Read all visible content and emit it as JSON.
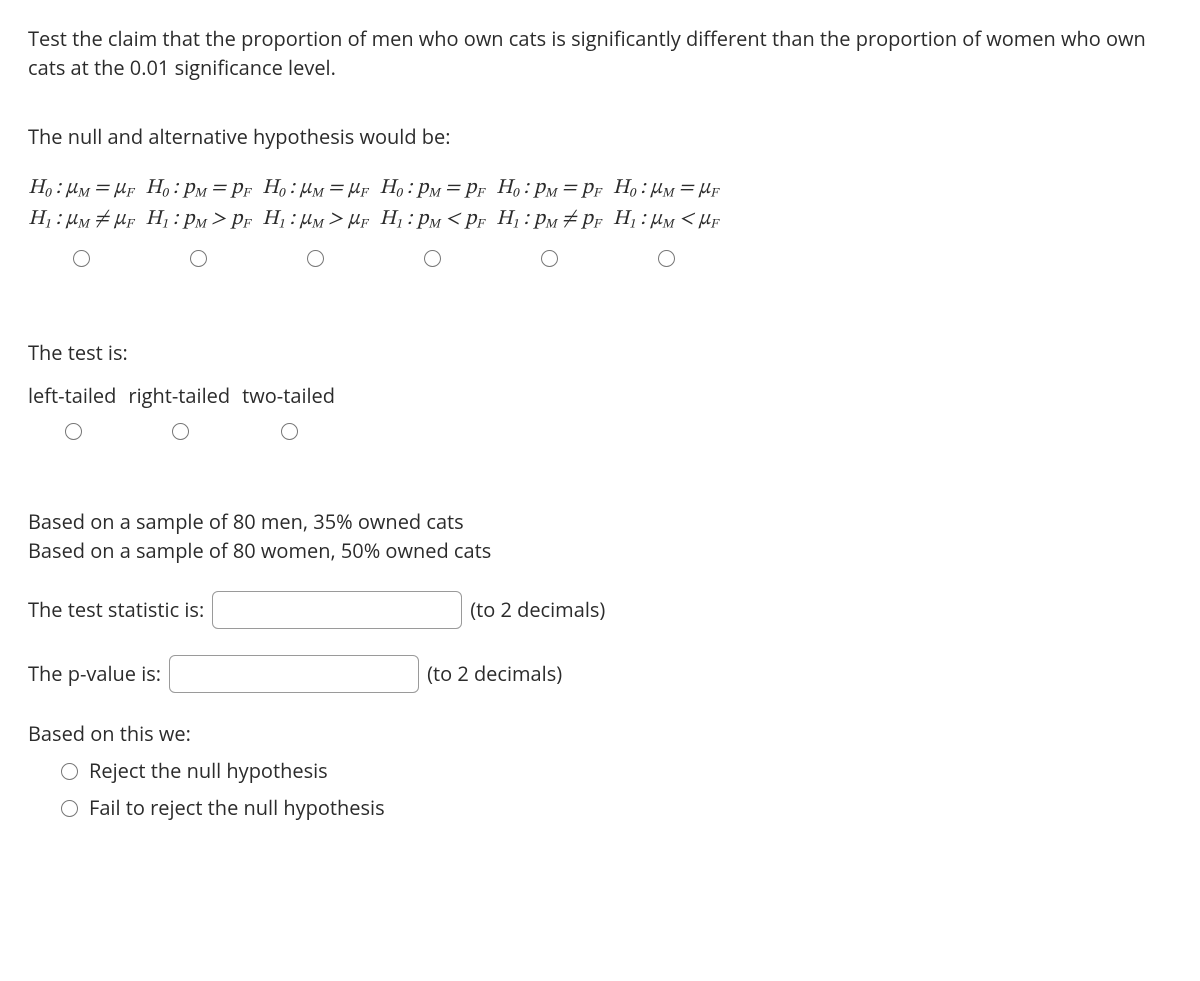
{
  "intro": "Test the claim that the proportion of men who own cats is significantly different than the proportion of women who own cats at the 0.01 significance level.",
  "hypothesis_prompt": "The null and alternative hypothesis would be:",
  "hyp_options": [
    {
      "h0": "H₀ : μ_M = μ_F",
      "h1": "H₁ : μ_M ≠ μ_F"
    },
    {
      "h0": "H₀ : p_M = p_F",
      "h1": "H₁ : p_M > p_F"
    },
    {
      "h0": "H₀ : μ_M = μ_F",
      "h1": "H₁ : μ_M > μ_F"
    },
    {
      "h0": "H₀ : p_M = p_F",
      "h1": "H₁ : p_M < p_F"
    },
    {
      "h0": "H₀ : p_M = p_F",
      "h1": "H₁ : p_M ≠ p_F"
    },
    {
      "h0": "H₀ : μ_M = μ_F",
      "h1": "H₁ : μ_M < μ_F"
    }
  ],
  "tail_prompt": "The test is:",
  "tail_options": [
    "left-tailed",
    "right-tailed",
    "two-tailed"
  ],
  "sample_line1": "Based on a sample of 80 men, 35% owned cats",
  "sample_line2": "Based on a sample of 80 women, 50% owned cats",
  "stat_label": "The test statistic is:",
  "stat_hint": "(to 2 decimals)",
  "stat_value": "",
  "pvalue_label": "The p-value is:",
  "pvalue_hint": "(to 2 decimals)",
  "pvalue_value": "",
  "conclusion_prompt": "Based on this we:",
  "conclusion_options": [
    "Reject the null hypothesis",
    "Fail to reject the null hypothesis"
  ]
}
